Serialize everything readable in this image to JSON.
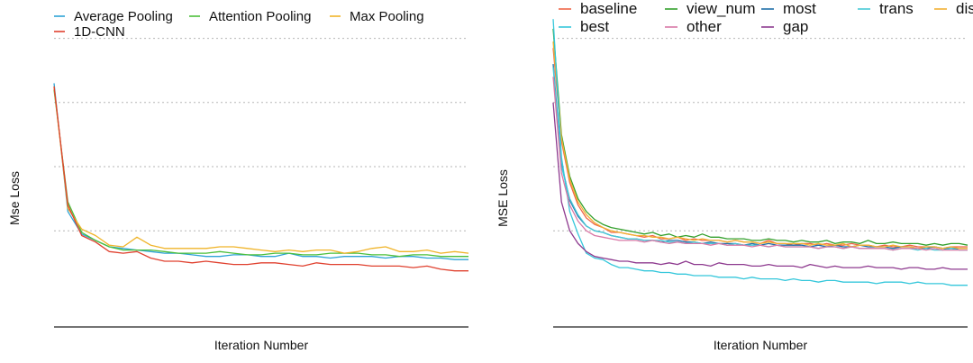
{
  "chart_data": [
    {
      "type": "line",
      "title": "",
      "xlabel": "Iteration Number",
      "ylabel": "Mse Loss",
      "xlim": [
        0,
        30
      ],
      "ylim": [
        0,
        10
      ],
      "grid": "horizontal dotted",
      "legend_position": "top-left",
      "x": [
        0,
        1,
        2,
        3,
        4,
        5,
        6,
        7,
        8,
        9,
        10,
        11,
        12,
        13,
        14,
        15,
        16,
        17,
        18,
        19,
        20,
        21,
        22,
        23,
        24,
        25,
        26,
        27,
        28,
        29,
        30
      ],
      "series": [
        {
          "name": "Average Pooling",
          "color": "#2ea3d6",
          "values": [
            7.6,
            3.6,
            2.9,
            2.7,
            2.5,
            2.45,
            2.4,
            2.35,
            2.3,
            2.3,
            2.25,
            2.2,
            2.2,
            2.25,
            2.25,
            2.2,
            2.2,
            2.3,
            2.2,
            2.2,
            2.15,
            2.2,
            2.2,
            2.2,
            2.15,
            2.2,
            2.2,
            2.15,
            2.15,
            2.1,
            2.1
          ]
        },
        {
          "name": "Attention Pooling",
          "color": "#4cbf3a",
          "values": [
            7.4,
            3.9,
            2.95,
            2.7,
            2.5,
            2.4,
            2.4,
            2.4,
            2.35,
            2.3,
            2.3,
            2.3,
            2.35,
            2.3,
            2.25,
            2.25,
            2.3,
            2.3,
            2.25,
            2.25,
            2.3,
            2.3,
            2.3,
            2.25,
            2.25,
            2.2,
            2.25,
            2.25,
            2.2,
            2.2,
            2.2
          ]
        },
        {
          "name": "Max Pooling",
          "color": "#f0b429",
          "values": [
            7.5,
            3.7,
            3.05,
            2.85,
            2.55,
            2.5,
            2.8,
            2.55,
            2.45,
            2.45,
            2.45,
            2.45,
            2.5,
            2.5,
            2.45,
            2.4,
            2.35,
            2.4,
            2.35,
            2.4,
            2.4,
            2.3,
            2.35,
            2.45,
            2.5,
            2.35,
            2.35,
            2.4,
            2.3,
            2.35,
            2.3
          ]
        },
        {
          "name": "1D-CNN",
          "color": "#e0412f",
          "values": [
            7.5,
            3.8,
            2.85,
            2.65,
            2.35,
            2.3,
            2.35,
            2.15,
            2.05,
            2.05,
            2.0,
            2.05,
            2.0,
            1.95,
            1.95,
            2.0,
            2.0,
            1.95,
            1.9,
            2.0,
            1.95,
            1.95,
            1.95,
            1.9,
            1.9,
            1.9,
            1.85,
            1.9,
            1.8,
            1.75,
            1.75
          ]
        }
      ]
    },
    {
      "type": "line",
      "title": "",
      "xlabel": "Iteration Number",
      "ylabel": "MSE Loss",
      "xlim": [
        0,
        50
      ],
      "ylim": [
        0,
        10
      ],
      "grid": "horizontal dotted",
      "legend_position": "top",
      "x": [
        0,
        1,
        2,
        3,
        4,
        5,
        6,
        7,
        8,
        9,
        10,
        11,
        12,
        13,
        14,
        15,
        16,
        17,
        18,
        19,
        20,
        21,
        22,
        23,
        24,
        25,
        26,
        27,
        28,
        29,
        30,
        31,
        32,
        33,
        34,
        35,
        36,
        37,
        38,
        39,
        40,
        41,
        42,
        43,
        44,
        45,
        46,
        47,
        48,
        49,
        50
      ],
      "series": [
        {
          "name": "baseline",
          "color": "#ef6548",
          "values": [
            8.7,
            5.8,
            4.5,
            3.8,
            3.4,
            3.2,
            3.1,
            2.95,
            2.95,
            2.9,
            2.85,
            2.8,
            2.85,
            2.75,
            2.75,
            2.8,
            2.7,
            2.75,
            2.7,
            2.7,
            2.7,
            2.65,
            2.7,
            2.65,
            2.65,
            2.6,
            2.7,
            2.6,
            2.6,
            2.55,
            2.6,
            2.6,
            2.55,
            2.6,
            2.55,
            2.55,
            2.6,
            2.55,
            2.55,
            2.5,
            2.55,
            2.5,
            2.5,
            2.55,
            2.5,
            2.5,
            2.5,
            2.45,
            2.5,
            2.5,
            2.5
          ]
        },
        {
          "name": "view_num",
          "color": "#33a02c",
          "values": [
            9.3,
            6.0,
            4.7,
            4.0,
            3.6,
            3.35,
            3.2,
            3.1,
            3.05,
            3.0,
            2.95,
            2.9,
            2.95,
            2.85,
            2.9,
            2.8,
            2.85,
            2.8,
            2.9,
            2.8,
            2.8,
            2.75,
            2.75,
            2.75,
            2.7,
            2.7,
            2.75,
            2.7,
            2.7,
            2.65,
            2.7,
            2.65,
            2.65,
            2.7,
            2.6,
            2.65,
            2.65,
            2.6,
            2.7,
            2.6,
            2.6,
            2.65,
            2.6,
            2.6,
            2.6,
            2.55,
            2.6,
            2.55,
            2.6,
            2.6,
            2.55
          ]
        },
        {
          "name": "most",
          "color": "#1f6fa8",
          "values": [
            8.2,
            5.1,
            3.95,
            3.45,
            3.15,
            3.0,
            2.95,
            2.85,
            2.8,
            2.75,
            2.75,
            2.7,
            2.7,
            2.65,
            2.7,
            2.7,
            2.65,
            2.65,
            2.6,
            2.65,
            2.6,
            2.6,
            2.6,
            2.55,
            2.6,
            2.55,
            2.6,
            2.55,
            2.55,
            2.55,
            2.55,
            2.5,
            2.55,
            2.5,
            2.55,
            2.5,
            2.5,
            2.55,
            2.5,
            2.5,
            2.5,
            2.45,
            2.5,
            2.5,
            2.45,
            2.45,
            2.5,
            2.45,
            2.45,
            2.45,
            2.45
          ]
        },
        {
          "name": "trans",
          "color": "#48c9d6",
          "values": [
            8.1,
            5.0,
            4.0,
            3.5,
            3.15,
            3.0,
            2.95,
            2.85,
            2.8,
            2.75,
            2.75,
            2.7,
            2.7,
            2.7,
            2.65,
            2.65,
            2.6,
            2.65,
            2.6,
            2.6,
            2.6,
            2.55,
            2.6,
            2.55,
            2.55,
            2.55,
            2.5,
            2.55,
            2.5,
            2.5,
            2.5,
            2.5,
            2.45,
            2.5,
            2.5,
            2.45,
            2.5,
            2.45,
            2.45,
            2.45,
            2.45,
            2.4,
            2.45,
            2.45,
            2.4,
            2.45,
            2.4,
            2.4,
            2.45,
            2.4,
            2.4
          ]
        },
        {
          "name": "distance",
          "color": "#f2b134",
          "values": [
            8.9,
            5.9,
            4.6,
            3.9,
            3.5,
            3.25,
            3.1,
            3.0,
            2.95,
            2.9,
            2.85,
            2.85,
            2.8,
            2.8,
            2.75,
            2.8,
            2.75,
            2.7,
            2.75,
            2.7,
            2.7,
            2.65,
            2.7,
            2.65,
            2.65,
            2.6,
            2.65,
            2.6,
            2.6,
            2.6,
            2.6,
            2.55,
            2.6,
            2.55,
            2.55,
            2.6,
            2.5,
            2.55,
            2.55,
            2.5,
            2.5,
            2.55,
            2.5,
            2.5,
            2.45,
            2.5,
            2.5,
            2.45,
            2.5,
            2.45,
            2.45
          ]
        },
        {
          "name": "best",
          "color": "#35c7db",
          "values": [
            9.6,
            5.3,
            3.6,
            2.9,
            2.3,
            2.15,
            2.1,
            1.95,
            1.85,
            1.85,
            1.8,
            1.75,
            1.75,
            1.7,
            1.7,
            1.65,
            1.65,
            1.6,
            1.6,
            1.6,
            1.55,
            1.55,
            1.55,
            1.5,
            1.55,
            1.5,
            1.5,
            1.5,
            1.45,
            1.5,
            1.45,
            1.45,
            1.4,
            1.45,
            1.45,
            1.4,
            1.4,
            1.4,
            1.4,
            1.35,
            1.4,
            1.4,
            1.4,
            1.35,
            1.4,
            1.35,
            1.35,
            1.35,
            1.3,
            1.3,
            1.3
          ]
        },
        {
          "name": "other",
          "color": "#d978a6",
          "values": [
            7.8,
            4.8,
            3.8,
            3.3,
            3.0,
            2.85,
            2.8,
            2.75,
            2.7,
            2.7,
            2.7,
            2.65,
            2.7,
            2.65,
            2.6,
            2.65,
            2.6,
            2.6,
            2.6,
            2.55,
            2.6,
            2.55,
            2.55,
            2.55,
            2.5,
            2.55,
            2.5,
            2.55,
            2.5,
            2.5,
            2.5,
            2.5,
            2.45,
            2.5,
            2.5,
            2.45,
            2.5,
            2.45,
            2.45,
            2.45,
            2.45,
            2.4,
            2.45,
            2.45,
            2.45,
            2.4,
            2.45,
            2.4,
            2.4,
            2.4,
            2.4
          ]
        },
        {
          "name": "gap",
          "color": "#8e3a8f",
          "values": [
            7.0,
            3.9,
            3.0,
            2.6,
            2.35,
            2.2,
            2.15,
            2.1,
            2.05,
            2.05,
            2.0,
            2.0,
            2.0,
            1.95,
            2.0,
            1.95,
            2.05,
            1.95,
            1.95,
            1.9,
            2.0,
            1.95,
            1.95,
            1.95,
            1.9,
            1.9,
            1.95,
            1.9,
            1.9,
            1.9,
            1.85,
            1.95,
            1.9,
            1.85,
            1.9,
            1.85,
            1.85,
            1.85,
            1.9,
            1.85,
            1.85,
            1.85,
            1.8,
            1.85,
            1.85,
            1.8,
            1.8,
            1.85,
            1.8,
            1.8,
            1.8
          ]
        }
      ]
    }
  ]
}
